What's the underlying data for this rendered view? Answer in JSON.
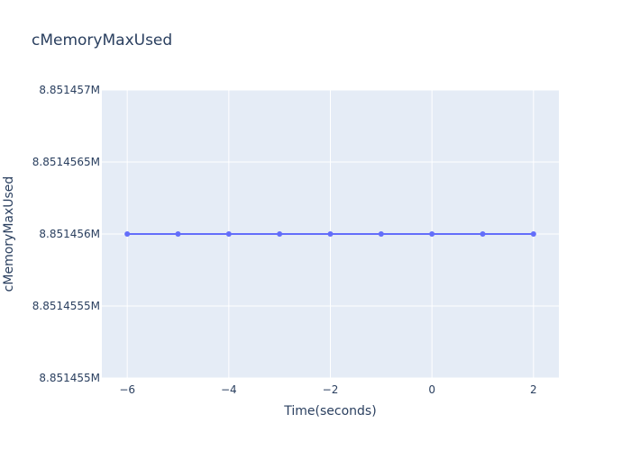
{
  "chart_data": {
    "type": "line",
    "title": "cMemoryMaxUsed",
    "xlabel": "Time(seconds)",
    "ylabel": "cMemoryMaxUsed",
    "xlim": [
      -6.5,
      2.5
    ],
    "ylim": [
      8851455,
      8851457
    ],
    "x_ticks": [
      -6,
      -4,
      -2,
      0,
      2
    ],
    "x_tick_labels": [
      "−6",
      "−4",
      "−2",
      "0",
      "2"
    ],
    "y_ticks": [
      8851455,
      8851455.5,
      8851456,
      8851456.5,
      8851457
    ],
    "y_tick_labels": [
      "8.851455M",
      "8.8514555M",
      "8.851456M",
      "8.8514565M",
      "8.851457M"
    ],
    "grid": true,
    "series": [
      {
        "color": "#636efa",
        "x": [
          -6,
          -5,
          -4,
          -3,
          -2,
          -1,
          0,
          1,
          2
        ],
        "y": [
          8851456,
          8851456,
          8851456,
          8851456,
          8851456,
          8851456,
          8851456,
          8851456,
          8851456
        ]
      }
    ]
  }
}
